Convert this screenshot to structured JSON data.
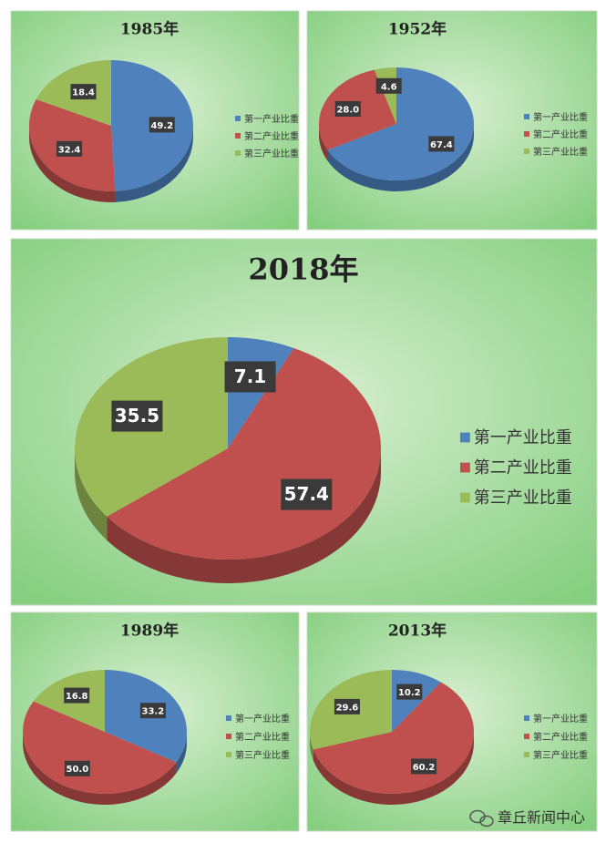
{
  "chart_data": [
    {
      "type": "pie",
      "title": "1985年",
      "categories": [
        "第一产业比重",
        "第二产业比重",
        "第三产业比重"
      ],
      "values": [
        49.2,
        32.4,
        18.4
      ],
      "colors": [
        "#4f81bd",
        "#c0504d",
        "#9bbb59"
      ]
    },
    {
      "type": "pie",
      "title": "1952年",
      "categories": [
        "第一产业比重",
        "第二产业比重",
        "第三产业比重"
      ],
      "values": [
        67.4,
        28.0,
        4.6
      ],
      "value_labels": [
        "67.4",
        "28.0",
        "4.6"
      ],
      "colors": [
        "#4f81bd",
        "#c0504d",
        "#9bbb59"
      ]
    },
    {
      "type": "pie",
      "title": "2018年",
      "categories": [
        "第一产业比重",
        "第二产业比重",
        "第三产业比重"
      ],
      "values": [
        7.1,
        57.4,
        35.5
      ],
      "colors": [
        "#4f81bd",
        "#c0504d",
        "#9bbb59"
      ]
    },
    {
      "type": "pie",
      "title": "1989年",
      "categories": [
        "第一产业比重",
        "第二产业比重",
        "第三产业比重"
      ],
      "values": [
        33.2,
        50.0,
        16.8
      ],
      "value_labels": [
        "33.2",
        "50.0",
        "16.8"
      ],
      "colors": [
        "#4f81bd",
        "#c0504d",
        "#9bbb59"
      ]
    },
    {
      "type": "pie",
      "title": "2013年",
      "categories": [
        "第一产业比重",
        "第二产业比重",
        "第三产业比重"
      ],
      "values": [
        10.2,
        60.2,
        29.6
      ],
      "colors": [
        "#4f81bd",
        "#c0504d",
        "#9bbb59"
      ]
    }
  ],
  "watermark": "章丘新闻中心"
}
